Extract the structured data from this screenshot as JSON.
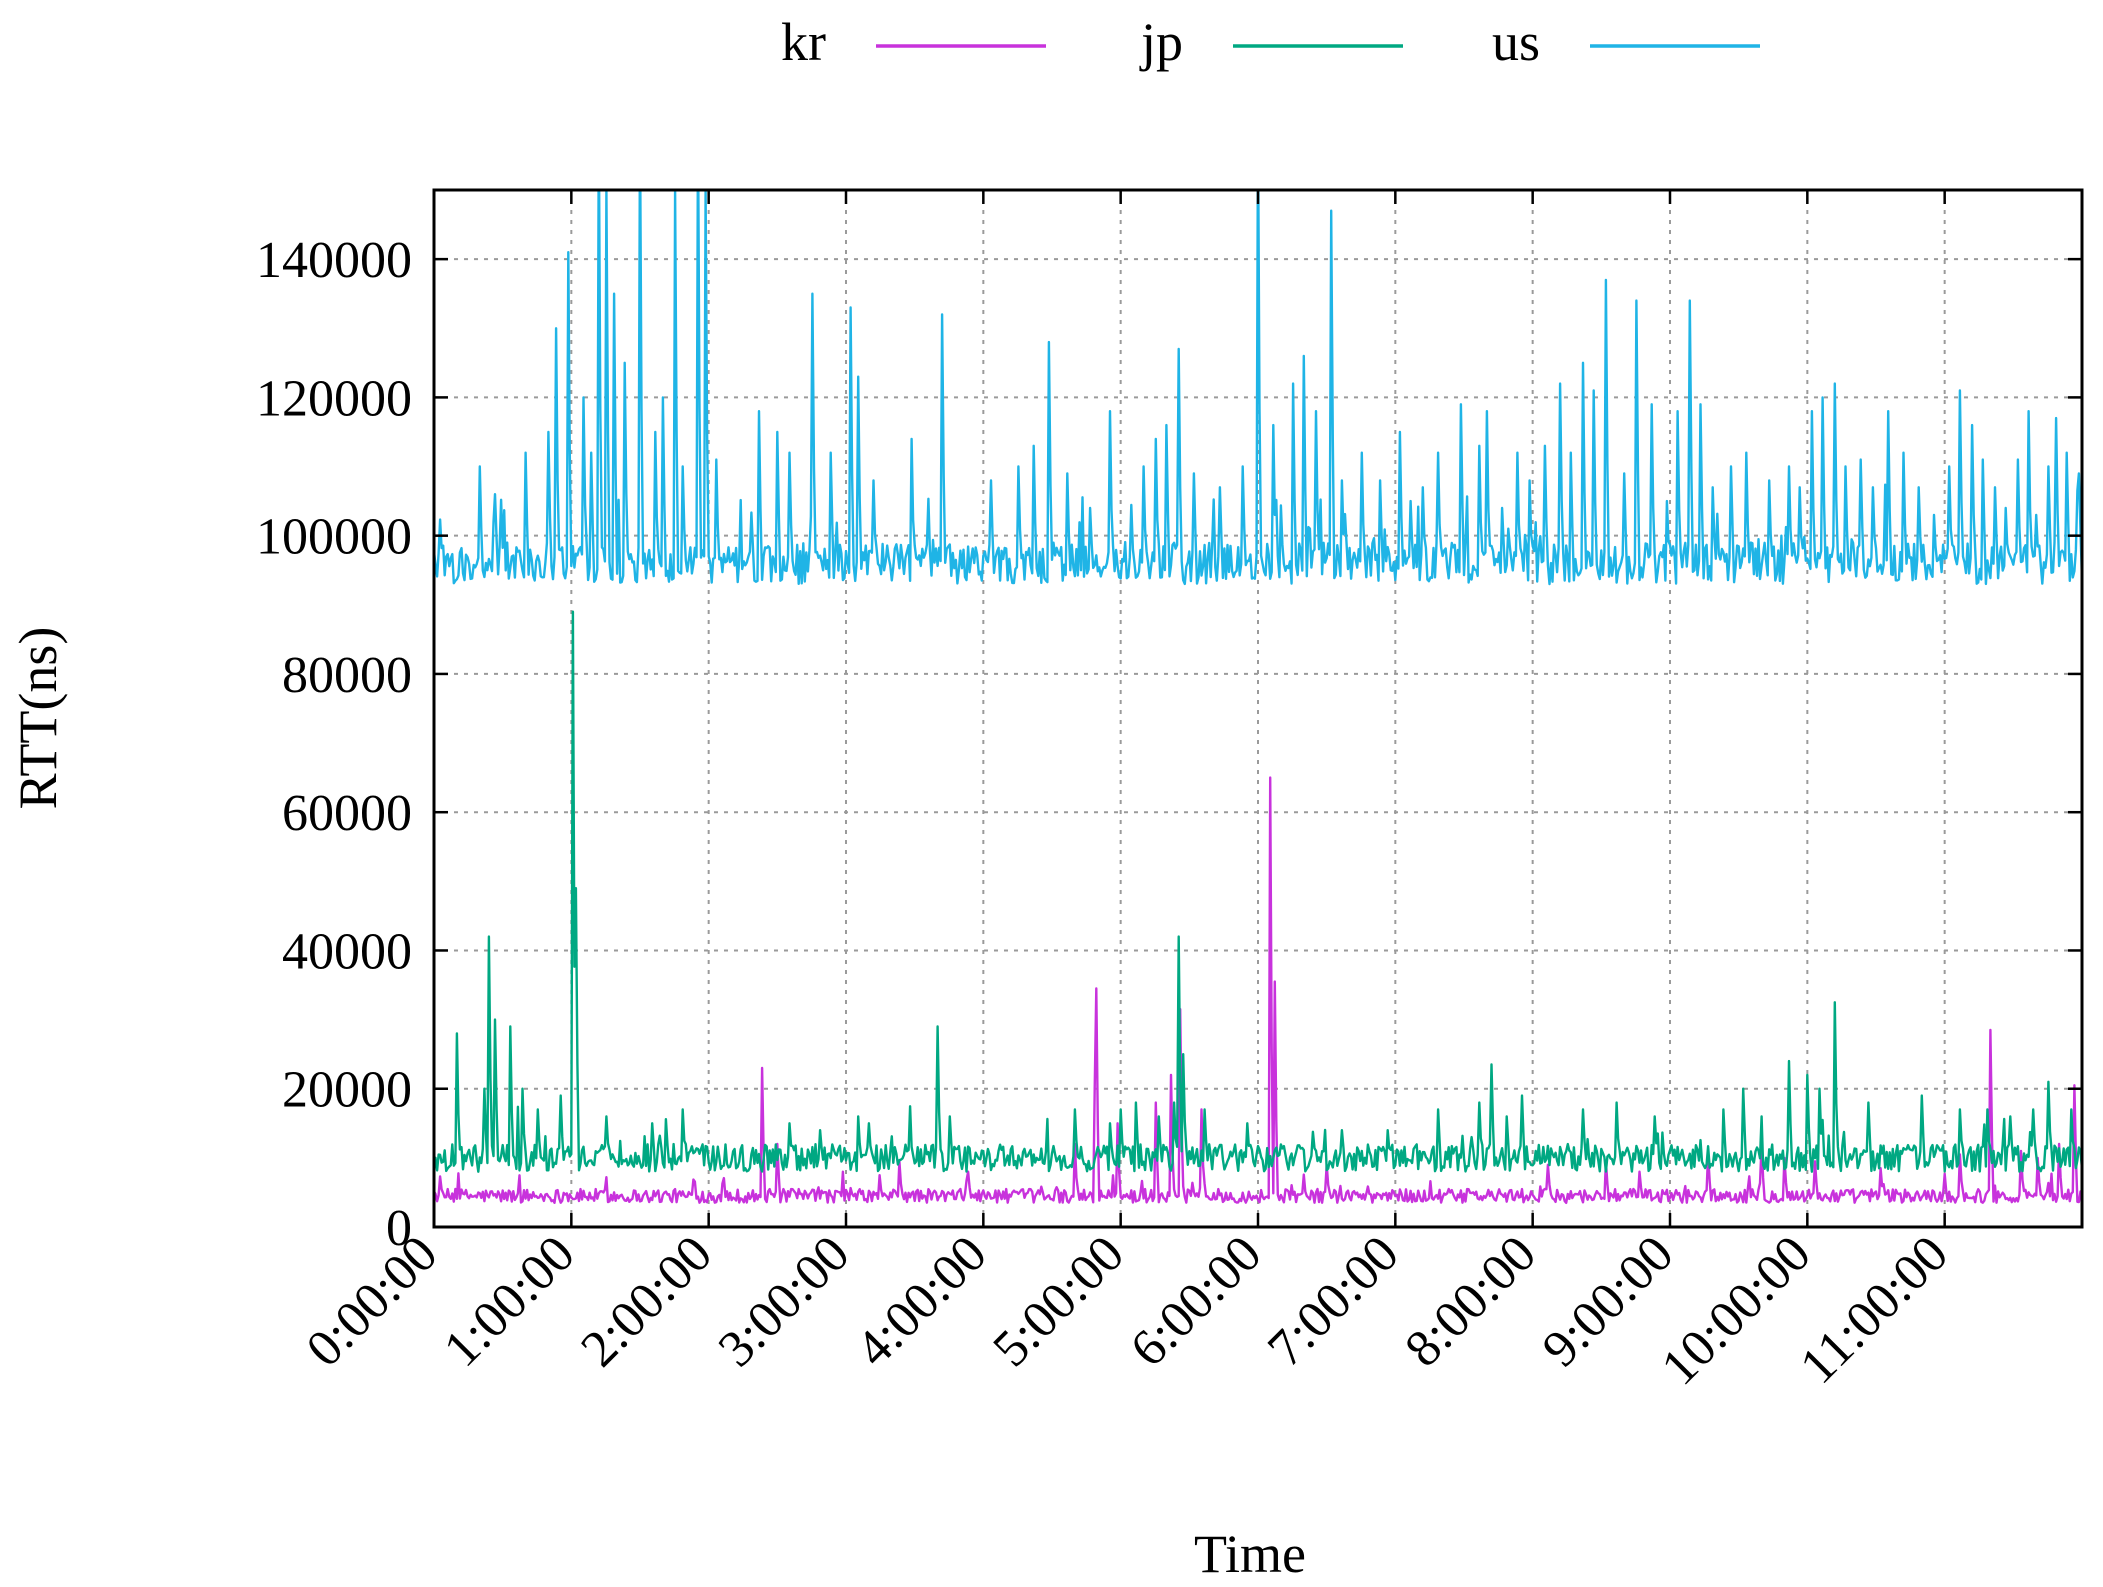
{
  "chart_data": {
    "type": "line",
    "xlabel": "Time",
    "ylabel": "RTT(ns)",
    "xlim": [
      0,
      43200
    ],
    "ylim": [
      0,
      150000
    ],
    "x_ticks": [
      0,
      3600,
      7200,
      10800,
      14400,
      18000,
      21600,
      25200,
      28800,
      32400,
      36000,
      39600
    ],
    "x_tick_labels": [
      "0:00:00",
      "1:00:00",
      "2:00:00",
      "3:00:00",
      "4:00:00",
      "5:00:00",
      "6:00:00",
      "7:00:00",
      "8:00:00",
      "9:00:00",
      "10:00:00",
      "11:00:00"
    ],
    "y_ticks": [
      0,
      20000,
      40000,
      60000,
      80000,
      100000,
      120000,
      140000
    ],
    "y_tick_labels": [
      "0",
      "20000",
      "40000",
      "60000",
      "80000",
      "100000",
      "120000",
      "140000"
    ],
    "grid": true,
    "legend_position": "top",
    "series": [
      {
        "name": "kr",
        "color": "#c832dc",
        "baseline": 4500,
        "noise": 1000,
        "spikes": [
          [
            8600,
            23000
          ],
          [
            9000,
            12000
          ],
          [
            12200,
            9500
          ],
          [
            14000,
            8000
          ],
          [
            16800,
            12000
          ],
          [
            17300,
            20000
          ],
          [
            17350,
            34500
          ],
          [
            17900,
            15000
          ],
          [
            18900,
            18000
          ],
          [
            19300,
            22000
          ],
          [
            19550,
            31500
          ],
          [
            20100,
            17000
          ],
          [
            21900,
            65000
          ],
          [
            22050,
            35500
          ],
          [
            23400,
            9000
          ],
          [
            29200,
            9000
          ],
          [
            30700,
            9500
          ],
          [
            31600,
            8000
          ],
          [
            33400,
            10500
          ],
          [
            34800,
            12000
          ],
          [
            35400,
            10000
          ],
          [
            36200,
            9500
          ],
          [
            37900,
            8500
          ],
          [
            40000,
            10500
          ],
          [
            40800,
            28500
          ],
          [
            41600,
            11000
          ],
          [
            42050,
            10000
          ],
          [
            42600,
            12000
          ],
          [
            43000,
            20500
          ]
        ]
      },
      {
        "name": "jp",
        "color": "#00a882",
        "baseline": 10000,
        "noise": 2000,
        "spikes": [
          [
            600,
            28000
          ],
          [
            1300,
            20000
          ],
          [
            1450,
            42000
          ],
          [
            1600,
            30000
          ],
          [
            2000,
            29000
          ],
          [
            2300,
            20000
          ],
          [
            2700,
            17000
          ],
          [
            3300,
            19000
          ],
          [
            3650,
            89000
          ],
          [
            3700,
            49000
          ],
          [
            4500,
            16000
          ],
          [
            5700,
            15000
          ],
          [
            6500,
            17000
          ],
          [
            9300,
            15000
          ],
          [
            10100,
            14000
          ],
          [
            11100,
            16000
          ],
          [
            11400,
            15000
          ],
          [
            13200,
            29000
          ],
          [
            13500,
            16000
          ],
          [
            16800,
            17000
          ],
          [
            17700,
            15000
          ],
          [
            18000,
            17000
          ],
          [
            18400,
            18000
          ],
          [
            19000,
            16000
          ],
          [
            19400,
            18000
          ],
          [
            19500,
            42000
          ],
          [
            19650,
            25000
          ],
          [
            20200,
            17000
          ],
          [
            21300,
            15000
          ],
          [
            23800,
            14000
          ],
          [
            25000,
            14000
          ],
          [
            26300,
            17000
          ],
          [
            27400,
            18000
          ],
          [
            27700,
            23500
          ],
          [
            28100,
            16000
          ],
          [
            28500,
            19000
          ],
          [
            30100,
            17000
          ],
          [
            31000,
            18000
          ],
          [
            32000,
            16000
          ],
          [
            33800,
            17000
          ],
          [
            34300,
            20000
          ],
          [
            35500,
            24000
          ],
          [
            36000,
            22000
          ],
          [
            36300,
            20000
          ],
          [
            36700,
            32500
          ],
          [
            37600,
            18000
          ],
          [
            39000,
            19000
          ],
          [
            40000,
            17000
          ],
          [
            40700,
            17000
          ],
          [
            41300,
            16000
          ],
          [
            41900,
            17000
          ],
          [
            42300,
            21000
          ],
          [
            42900,
            17000
          ]
        ]
      },
      {
        "name": "us",
        "color": "#1fb4e6",
        "baseline": 96000,
        "noise": 3000,
        "spikes": [
          [
            1200,
            110000
          ],
          [
            1600,
            106000
          ],
          [
            2400,
            112000
          ],
          [
            3000,
            115000
          ],
          [
            3200,
            130000
          ],
          [
            3500,
            141000
          ],
          [
            3900,
            120000
          ],
          [
            4100,
            112000
          ],
          [
            4300,
            160000
          ],
          [
            4500,
            150000
          ],
          [
            4700,
            135000
          ],
          [
            5000,
            125000
          ],
          [
            5400,
            160000
          ],
          [
            5800,
            115000
          ],
          [
            6000,
            120000
          ],
          [
            6300,
            150000
          ],
          [
            6500,
            110000
          ],
          [
            6900,
            160000
          ],
          [
            7100,
            150000
          ],
          [
            7400,
            111000
          ],
          [
            8500,
            118000
          ],
          [
            9000,
            115000
          ],
          [
            9300,
            112000
          ],
          [
            9900,
            135000
          ],
          [
            10400,
            112000
          ],
          [
            10900,
            133000
          ],
          [
            11100,
            123000
          ],
          [
            11500,
            108000
          ],
          [
            12500,
            114000
          ],
          [
            13300,
            132000
          ],
          [
            14600,
            108000
          ],
          [
            15300,
            110000
          ],
          [
            15700,
            113000
          ],
          [
            16100,
            128000
          ],
          [
            16600,
            109000
          ],
          [
            17200,
            104000
          ],
          [
            17700,
            118000
          ],
          [
            18600,
            110000
          ],
          [
            18900,
            114000
          ],
          [
            19200,
            116000
          ],
          [
            19500,
            127000
          ],
          [
            19900,
            109000
          ],
          [
            20600,
            107000
          ],
          [
            21200,
            110000
          ],
          [
            21600,
            160000
          ],
          [
            22000,
            116000
          ],
          [
            22500,
            122000
          ],
          [
            22800,
            126000
          ],
          [
            23100,
            118000
          ],
          [
            23500,
            147000
          ],
          [
            23800,
            108000
          ],
          [
            24300,
            112000
          ],
          [
            24800,
            108000
          ],
          [
            25300,
            115000
          ],
          [
            25600,
            105000
          ],
          [
            25900,
            107000
          ],
          [
            26300,
            112000
          ],
          [
            26900,
            119000
          ],
          [
            27400,
            113000
          ],
          [
            27600,
            118000
          ],
          [
            28000,
            104000
          ],
          [
            28400,
            112000
          ],
          [
            28700,
            108000
          ],
          [
            29100,
            113000
          ],
          [
            29500,
            122000
          ],
          [
            29800,
            112000
          ],
          [
            30100,
            125000
          ],
          [
            30400,
            121000
          ],
          [
            30700,
            137000
          ],
          [
            31200,
            109000
          ],
          [
            31500,
            134000
          ],
          [
            31900,
            119000
          ],
          [
            32300,
            105000
          ],
          [
            32600,
            118000
          ],
          [
            32900,
            134000
          ],
          [
            33200,
            119000
          ],
          [
            33500,
            107000
          ],
          [
            34000,
            110000
          ],
          [
            34400,
            112000
          ],
          [
            35000,
            108000
          ],
          [
            35500,
            110000
          ],
          [
            35800,
            107000
          ],
          [
            36100,
            118000
          ],
          [
            36400,
            120000
          ],
          [
            36700,
            122000
          ],
          [
            37000,
            110000
          ],
          [
            37400,
            111000
          ],
          [
            37700,
            107000
          ],
          [
            38100,
            118000
          ],
          [
            38500,
            112000
          ],
          [
            38900,
            107000
          ],
          [
            39300,
            103000
          ],
          [
            39700,
            110000
          ],
          [
            40000,
            121000
          ],
          [
            40300,
            116000
          ],
          [
            40600,
            111000
          ],
          [
            40900,
            107000
          ],
          [
            41200,
            104000
          ],
          [
            41500,
            111000
          ],
          [
            41800,
            118000
          ],
          [
            42000,
            103000
          ],
          [
            42300,
            110000
          ],
          [
            42500,
            117000
          ],
          [
            42800,
            112000
          ],
          [
            43100,
            109000
          ]
        ]
      }
    ]
  }
}
